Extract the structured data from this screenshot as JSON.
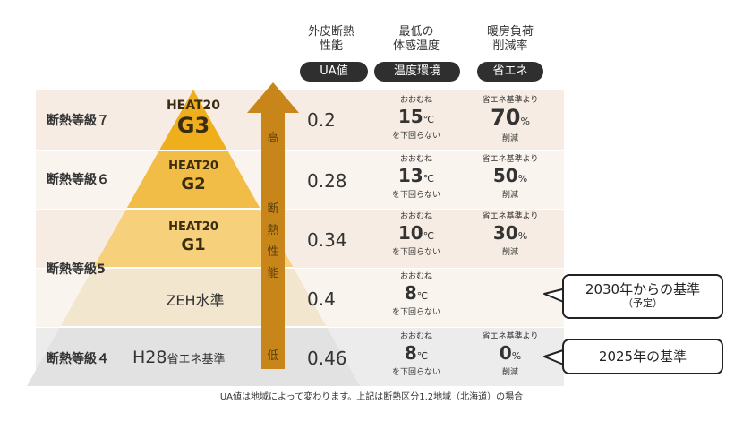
{
  "headers": {
    "col1_title": "外皮断熱\n性能",
    "col1_pill": "UA値",
    "col2_title": "最低の\n体感温度",
    "col2_pill": "温度環境",
    "col3_title": "暖房負荷\n削減率",
    "col3_pill": "省エネ"
  },
  "rows": [
    {
      "grade": "断熱等級７",
      "heat_top": "HEAT20",
      "heat_bottom": "G3",
      "ua": "0.2",
      "temp_pre": "おおむね",
      "temp_val": "15",
      "temp_unit": "℃",
      "temp_post": "を下回らない",
      "sav_pre": "省エネ基準より",
      "sav_val": "70",
      "sav_unit": "%",
      "sav_post": "削減"
    },
    {
      "grade": "断熱等級６",
      "heat_top": "HEAT20",
      "heat_bottom": "G2",
      "ua": "0.28",
      "temp_pre": "おおむね",
      "temp_val": "13",
      "temp_unit": "℃",
      "temp_post": "を下回らない",
      "sav_pre": "省エネ基準より",
      "sav_val": "50",
      "sav_unit": "%",
      "sav_post": "削減"
    },
    {
      "grade": "",
      "heat_top": "HEAT20",
      "heat_bottom": "G1",
      "ua": "0.34",
      "temp_pre": "おおむね",
      "temp_val": "10",
      "temp_unit": "℃",
      "temp_post": "を下回らない",
      "sav_pre": "省エネ基準より",
      "sav_val": "30",
      "sav_unit": "%",
      "sav_post": "削減"
    },
    {
      "grade": "",
      "heat_top": "ZEH水準",
      "heat_bottom": "",
      "ua": "0.4",
      "temp_pre": "おおむね",
      "temp_val": "8",
      "temp_unit": "℃",
      "temp_post": "を下回らない",
      "sav_pre": "",
      "sav_val": "",
      "sav_unit": "",
      "sav_post": ""
    },
    {
      "grade": "断熱等級４",
      "heat_top": "H28",
      "heat_bottom": "省エネ基準",
      "ua": "0.46",
      "temp_pre": "おおむね",
      "temp_val": "8",
      "temp_unit": "℃",
      "temp_post": "を下回らない",
      "sav_pre": "省エネ基準より",
      "sav_val": "0",
      "sav_unit": "%",
      "sav_post": "削減"
    }
  ],
  "grade5_label": "断熱等級5",
  "arrow_labels": {
    "top": "高",
    "mid": [
      "断",
      "熱",
      "性",
      "能"
    ],
    "bottom": "低"
  },
  "bubbles": {
    "b1_line1": "2030年からの基準",
    "b1_line2": "（予定）",
    "b2_line1": "2025年の基準"
  },
  "footnote": "UA値は地域によって変わります。上記は断熱区分1.2地域（北海道）の場合",
  "colors": {
    "band1": "#f6ece3",
    "band2": "#faf4ee",
    "band_low": "#ececec",
    "tri_top": "#efae1c",
    "tri_mid": "#f3c45a",
    "tri_low": "#f8dea0",
    "arrow": "#c8861a"
  }
}
